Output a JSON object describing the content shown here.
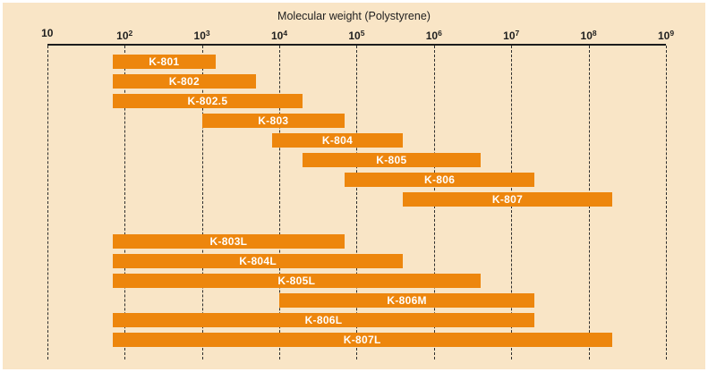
{
  "panel": {
    "background_color": "#f9e5c6",
    "frame_color": "#ffffff"
  },
  "colors": {
    "bar": "#ed860d",
    "bar_label": "#ffffff",
    "axis": "#1c1c1c",
    "gridline": "#2e2e2e",
    "text": "#1f1f1f"
  },
  "chart_data": {
    "type": "bar",
    "subtype": "horizontal-range-bars",
    "title": "Molecular weight (Polystyrene)",
    "x_axis": {
      "scale": "log10",
      "min": 10,
      "max": 1000000000,
      "tick_base": "10",
      "tick_exponents": [
        1,
        2,
        3,
        4,
        5,
        6,
        7,
        8,
        9
      ],
      "tick_labels": [
        "10",
        "10^2",
        "10^3",
        "10^4",
        "10^5",
        "10^6",
        "10^7",
        "10^8",
        "10^9"
      ]
    },
    "grid": "dashed-vertical",
    "legend": "none",
    "series": [
      {
        "name": "K-801",
        "range": [
          70,
          1500
        ],
        "group": 1
      },
      {
        "name": "K-802",
        "range": [
          70,
          5000
        ],
        "group": 1
      },
      {
        "name": "K-802.5",
        "range": [
          70,
          20000
        ],
        "group": 1
      },
      {
        "name": "K-803",
        "range": [
          1000,
          70000
        ],
        "group": 1
      },
      {
        "name": "K-804",
        "range": [
          8000,
          400000
        ],
        "group": 1
      },
      {
        "name": "K-805",
        "range": [
          20000,
          4000000
        ],
        "group": 1
      },
      {
        "name": "K-806",
        "range": [
          70000,
          20000000
        ],
        "group": 1
      },
      {
        "name": "K-807",
        "range": [
          400000,
          200000000
        ],
        "group": 1
      },
      {
        "name": "K-803L",
        "range": [
          70,
          70000
        ],
        "group": 2
      },
      {
        "name": "K-804L",
        "range": [
          70,
          400000
        ],
        "group": 2
      },
      {
        "name": "K-805L",
        "range": [
          70,
          4000000
        ],
        "group": 2
      },
      {
        "name": "K-806M",
        "range": [
          10000,
          20000000
        ],
        "group": 2
      },
      {
        "name": "K-806L",
        "range": [
          70,
          20000000
        ],
        "group": 2
      },
      {
        "name": "K-807L",
        "range": [
          70,
          200000000
        ],
        "group": 2
      }
    ]
  }
}
